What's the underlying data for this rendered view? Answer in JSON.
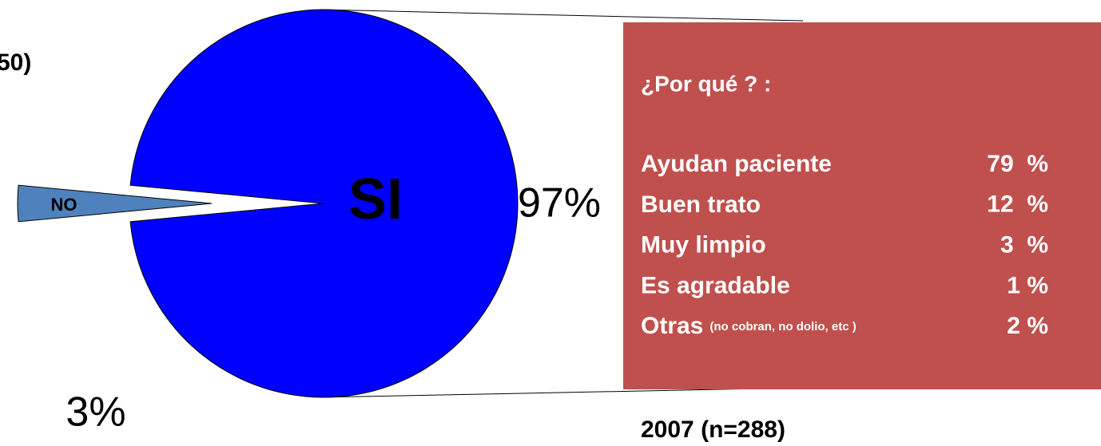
{
  "chart_data": {
    "type": "pie",
    "title": "50)",
    "categories": [
      "SI",
      "NO"
    ],
    "values": [
      97,
      3
    ],
    "value_labels": [
      "97%",
      "3%"
    ],
    "colors": [
      "#0000ff",
      "#4f81bd"
    ]
  },
  "reasons_box": {
    "title": "¿Por qué ? :",
    "rows": [
      {
        "label": "Ayudan paciente",
        "value": "79  %"
      },
      {
        "label": "Buen trato",
        "value": "12  %"
      },
      {
        "label": "Muy limpio",
        "value": "3  %"
      },
      {
        "label": "Es agradable",
        "value": "1 %"
      },
      {
        "label": "Otras",
        "note": "(no cobran, no dolio, etc )",
        "value": "2 %"
      }
    ],
    "footer": "2007 (n=288)"
  }
}
